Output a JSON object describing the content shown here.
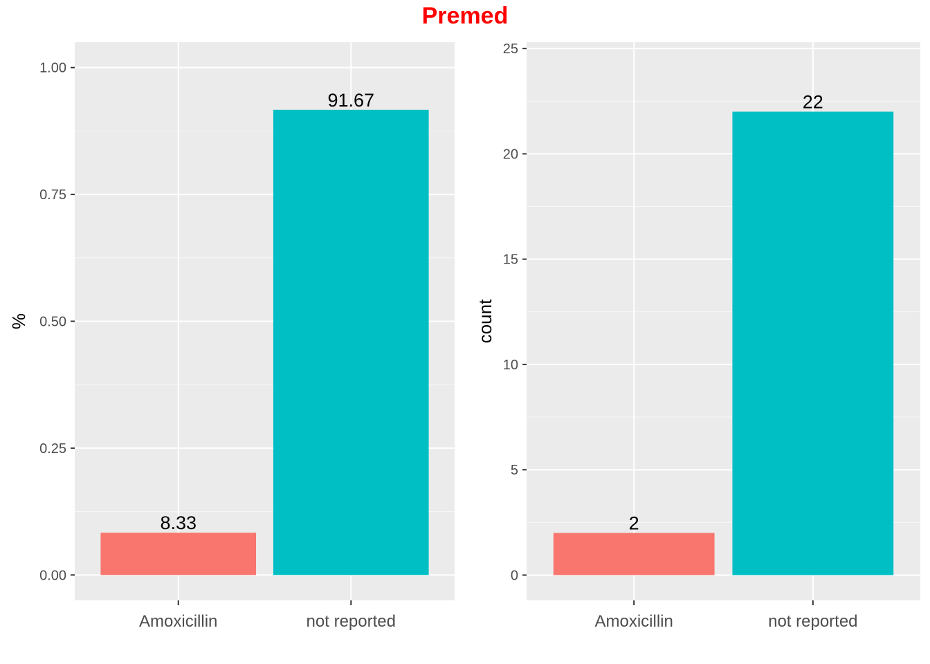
{
  "title": "Premed",
  "title_color": "#FF0000",
  "panel_background": "#EBEBEB",
  "grid_color": "#FFFFFF",
  "chart_data": [
    {
      "type": "bar",
      "categories": [
        "Amoxicillin",
        "not reported"
      ],
      "values": [
        0.0833,
        0.9167
      ],
      "data_labels": [
        "8.33",
        "91.67"
      ],
      "colors": [
        "#F8766D",
        "#00BFC4"
      ],
      "ylabel": "%",
      "xlabel": "",
      "ylim": [
        -0.05,
        1.05
      ],
      "yticks": [
        0,
        0.25,
        0.5,
        0.75,
        1
      ],
      "ytick_labels": [
        "0.00",
        "0.25",
        "0.50",
        "0.75",
        "1.00"
      ],
      "grid": true,
      "legend": "none"
    },
    {
      "type": "bar",
      "categories": [
        "Amoxicillin",
        "not reported"
      ],
      "values": [
        2,
        22
      ],
      "data_labels": [
        "2",
        "22"
      ],
      "colors": [
        "#F8766D",
        "#00BFC4"
      ],
      "ylabel": "count",
      "xlabel": "",
      "ylim": [
        -1.2,
        25.3
      ],
      "yticks": [
        0,
        5,
        10,
        15,
        20,
        25
      ],
      "ytick_labels": [
        "0",
        "5",
        "10",
        "15",
        "20",
        "25"
      ],
      "grid": true,
      "legend": "none"
    }
  ]
}
